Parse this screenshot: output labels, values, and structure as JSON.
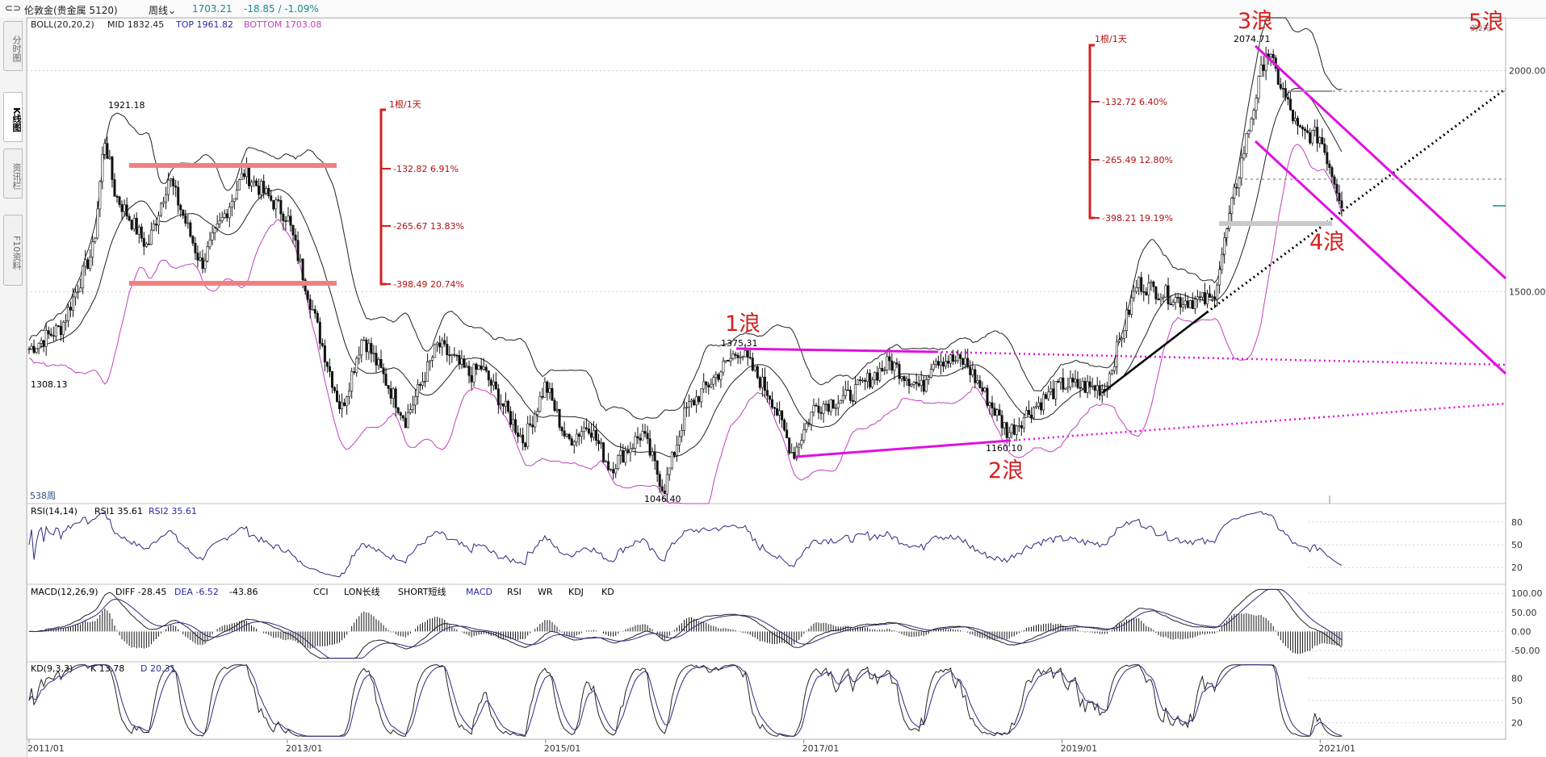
{
  "header": {
    "icon": "window-toggle-icon",
    "instrument": "伦敦金(贵金属 5120)",
    "period": "周线",
    "price": "1703.21",
    "change": "-18.85 / -1.09%"
  },
  "side_tabs": [
    "分时图",
    "K线图",
    "资讯栏",
    "F10资料"
  ],
  "indicator_tabs": [
    "CCI",
    "LON长线",
    "SHORT短线",
    "MACD",
    "RSI",
    "WR",
    "KDJ",
    "KD"
  ],
  "colors": {
    "accent_red": "#d42020",
    "magenta": "#e010e0",
    "boll_bottom": "#c040c0",
    "up_teal": "#1a8a8a",
    "salmon": "#f08080",
    "grid": "#d0d0d0"
  },
  "chart_data": [
    {
      "type": "candlestick",
      "panel": "main",
      "legend": {
        "boll": "BOLL(20,20,2)",
        "mid": "MID 1832.45",
        "top": "TOP 1961.82",
        "bottom": "BOTTOM 1703.08"
      },
      "y_ticks": [
        "2000.00",
        "1500.00"
      ],
      "x_ticks": [
        "2011/01",
        "2013/01",
        "2015/01",
        "2017/01",
        "2019/01",
        "2021/01"
      ],
      "x_range": [
        "2011/01",
        "2021/03"
      ],
      "ylim": [
        1020,
        2120
      ],
      "bars_label": "538周",
      "close_path": [
        [
          "2011/01",
          1370
        ],
        [
          "2011/04",
          1420
        ],
        [
          "2011/07",
          1600
        ],
        [
          "2011/08",
          1850
        ],
        [
          "2011/09",
          1720
        ],
        [
          "2011/12",
          1600
        ],
        [
          "2012/02",
          1760
        ],
        [
          "2012/05",
          1560
        ],
        [
          "2012/09",
          1770
        ],
        [
          "2012/11",
          1720
        ],
        [
          "2013/01",
          1670
        ],
        [
          "2013/02",
          1580
        ],
        [
          "2013/04",
          1400
        ],
        [
          "2013/06",
          1230
        ],
        [
          "2013/08",
          1400
        ],
        [
          "2013/12",
          1210
        ],
        [
          "2014/03",
          1380
        ],
        [
          "2014/06",
          1310
        ],
        [
          "2014/07",
          1330
        ],
        [
          "2014/11",
          1160
        ],
        [
          "2015/01",
          1290
        ],
        [
          "2015/03",
          1160
        ],
        [
          "2015/05",
          1200
        ],
        [
          "2015/07",
          1100
        ],
        [
          "2015/10",
          1180
        ],
        [
          "2015/12",
          1050
        ],
        [
          "2016/02",
          1230
        ],
        [
          "2016/07",
          1370
        ],
        [
          "2016/10",
          1260
        ],
        [
          "2016/12",
          1130
        ],
        [
          "2017/02",
          1240
        ],
        [
          "2017/05",
          1260
        ],
        [
          "2017/09",
          1340
        ],
        [
          "2017/12",
          1280
        ],
        [
          "2018/01",
          1350
        ],
        [
          "2018/04",
          1340
        ],
        [
          "2018/08",
          1180
        ],
        [
          "2018/10",
          1230
        ],
        [
          "2019/01",
          1290
        ],
        [
          "2019/05",
          1280
        ],
        [
          "2019/08",
          1520
        ],
        [
          "2019/12",
          1480
        ],
        [
          "2020/03",
          1480
        ],
        [
          "2020/05",
          1720
        ],
        [
          "2020/08",
          2050
        ],
        [
          "2020/11",
          1860
        ],
        [
          "2021/01",
          1850
        ],
        [
          "2021/03",
          1703
        ]
      ],
      "price_labels": [
        {
          "text": "1921.18",
          "date": "2011/09",
          "value": 1921.18
        },
        {
          "text": "1308.13",
          "date": "2011/01",
          "value": 1308.13
        },
        {
          "text": "1375.31",
          "date": "2016/07",
          "value": 1375.31
        },
        {
          "text": "1046.40",
          "date": "2015/12",
          "value": 1046.4
        },
        {
          "text": "1160.10",
          "date": "2018/08",
          "value": 1160.1
        },
        {
          "text": "2074.71",
          "date": "2020/08",
          "value": 2074.71
        }
      ],
      "wave_labels": [
        {
          "text": "1浪",
          "date": "2016/07"
        },
        {
          "text": "2浪",
          "date": "2018/08"
        },
        {
          "text": "3浪",
          "date": "2020/08"
        },
        {
          "text": "4浪",
          "date": "2021/03"
        },
        {
          "text": "5浪",
          "date": "2021/06"
        }
      ],
      "rulers": [
        {
          "header": "1根/1天",
          "levels": [
            {
              "text": "-132.82  6.91%"
            },
            {
              "text": "-265.67  13.83%"
            },
            {
              "text": "-398.49  20.74%"
            }
          ]
        },
        {
          "header": "1根/1天",
          "levels": [
            {
              "text": "-132.72  6.40%"
            },
            {
              "text": "-265.49  12.80%"
            },
            {
              "text": "-398.21  19.19%"
            }
          ]
        }
      ],
      "corner_text": "的2天"
    },
    {
      "type": "line",
      "panel": "rsi",
      "legend": {
        "name": "RSI(14,14)",
        "rsi1": "RSI1 35.61",
        "rsi2": "RSI2 35.61"
      },
      "y_ticks": [
        "80",
        "50",
        "20"
      ],
      "ylim": [
        0,
        100
      ]
    },
    {
      "type": "bar",
      "panel": "macd",
      "legend": {
        "name": "MACD(12,26,9)",
        "diff": "DIFF -28.45",
        "dea": "DEA -6.52",
        "macd": "-43.86"
      },
      "y_ticks": [
        "100.00",
        "50.00",
        "0.00",
        "-50.00"
      ],
      "ylim": [
        -75,
        115
      ]
    },
    {
      "type": "line",
      "panel": "kd",
      "legend": {
        "name": "KD(9,3,3)",
        "k": "K 13.78",
        "d": "D 20.31"
      },
      "y_ticks": [
        "80",
        "50",
        "20"
      ],
      "ylim": [
        0,
        100
      ]
    }
  ]
}
